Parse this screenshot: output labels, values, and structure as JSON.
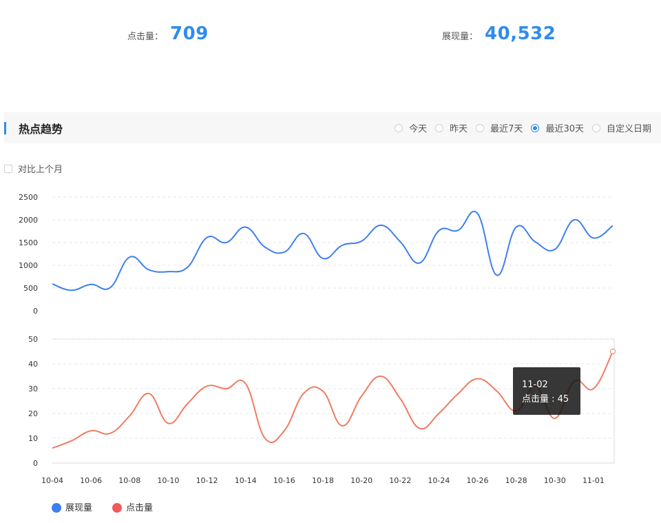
{
  "stats": {
    "clicks": {
      "label": "点击量：",
      "value": "709"
    },
    "views": {
      "label": "展现量：",
      "value": "40,532"
    }
  },
  "section": {
    "title": "热点趋势"
  },
  "range_options": [
    {
      "label": "今天",
      "selected": false
    },
    {
      "label": "昨天",
      "selected": false
    },
    {
      "label": "最近7天",
      "selected": false
    },
    {
      "label": "最近30天",
      "selected": true
    },
    {
      "label": "自定义日期",
      "selected": false
    }
  ],
  "compare": {
    "label": "对比上个月",
    "checked": false
  },
  "tooltip": {
    "title": "11-02",
    "line": "点击量 : 45"
  },
  "chart_data": {
    "type": "line",
    "x": [
      "10-04",
      "10-05",
      "10-06",
      "10-07",
      "10-08",
      "10-09",
      "10-10",
      "10-11",
      "10-12",
      "10-13",
      "10-14",
      "10-15",
      "10-16",
      "10-17",
      "10-18",
      "10-19",
      "10-20",
      "10-21",
      "10-22",
      "10-23",
      "10-24",
      "10-25",
      "10-26",
      "10-27",
      "10-28",
      "10-29",
      "10-30",
      "10-31",
      "11-01",
      "11-02"
    ],
    "x_ticks": [
      "10-04",
      "10-06",
      "10-08",
      "10-10",
      "10-12",
      "10-14",
      "10-16",
      "10-18",
      "10-20",
      "10-22",
      "10-24",
      "10-26",
      "10-28",
      "10-30",
      "11-01"
    ],
    "panels": [
      {
        "series": [
          {
            "name": "展现量",
            "color": "#3b7ff0",
            "values": [
              590,
              450,
              580,
              510,
              1180,
              900,
              860,
              960,
              1610,
              1500,
              1840,
              1400,
              1290,
              1700,
              1150,
              1440,
              1530,
              1880,
              1520,
              1050,
              1760,
              1770,
              2140,
              780,
              1840,
              1510,
              1350,
              2000,
              1600,
              1870
            ]
          }
        ],
        "ylim": [
          0,
          2500
        ],
        "yticks": [
          0,
          500,
          1000,
          1500,
          2000,
          2500
        ]
      },
      {
        "series": [
          {
            "name": "点击量",
            "color": "#f07a60",
            "values": [
              6,
              9,
              13,
              12,
              19,
              28,
              16,
              24,
              31,
              30,
              32,
              10,
              13,
              28,
              29,
              15,
              27,
              35,
              26,
              14,
              20,
              28,
              34,
              29,
              21,
              31,
              18,
              33,
              30,
              45
            ]
          }
        ],
        "ylim": [
          0,
          50
        ],
        "yticks": [
          0,
          10,
          20,
          30,
          40,
          50
        ]
      }
    ],
    "legend": [
      {
        "name": "展现量",
        "color": "#3b7ff0"
      },
      {
        "name": "点击量",
        "color": "#f05a5a"
      }
    ],
    "grid": true,
    "legend_position": "bottom-left"
  }
}
